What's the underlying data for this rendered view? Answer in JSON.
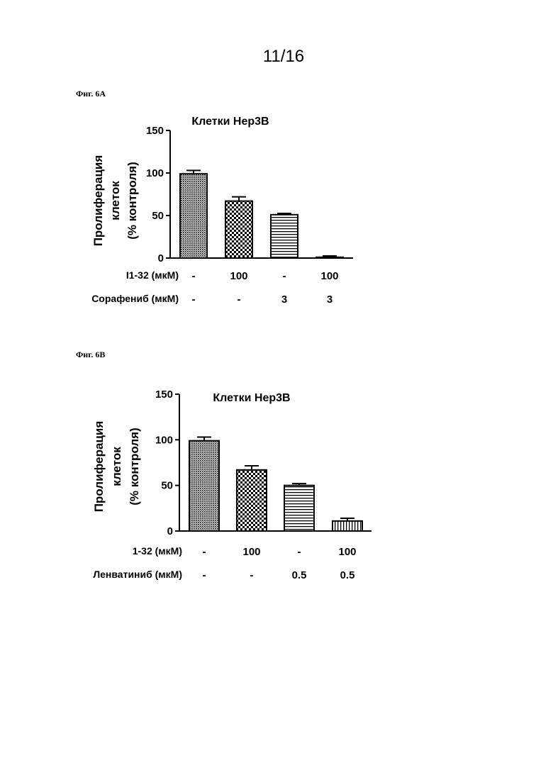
{
  "page_number": "11/16",
  "figures": [
    {
      "label": "Фиг. 6А"
    },
    {
      "label": "Фиг. 6В"
    }
  ],
  "chart_data": [
    {
      "type": "bar",
      "title": "Клетки Hep3B",
      "ylabel_lines": [
        "Пролиферация",
        "клеток",
        "(% контроля)"
      ],
      "ylim": [
        0,
        150
      ],
      "yticks": [
        0,
        50,
        100,
        150
      ],
      "values": [
        99,
        67,
        51,
        1
      ],
      "errors": [
        4,
        5,
        1.5,
        1.5
      ],
      "patterns": [
        "dots-dense",
        "checker",
        "horizontal-lines",
        "vertical-lines"
      ],
      "conditions": [
        {
          "label": "I1-32 (мкМ)",
          "values": [
            "-",
            "100",
            "-",
            "100"
          ]
        },
        {
          "label": "Сорафениб (мкМ)",
          "values": [
            "-",
            "-",
            "3",
            "3"
          ]
        }
      ]
    },
    {
      "type": "bar",
      "title": "Клетки Hep3B",
      "ylabel_lines": [
        "Пролиферация",
        "клеток",
        "(% контроля)"
      ],
      "ylim": [
        0,
        150
      ],
      "yticks": [
        0,
        50,
        100,
        150
      ],
      "values": [
        99,
        67,
        50,
        11
      ],
      "errors": [
        4,
        4.5,
        2,
        3
      ],
      "patterns": [
        "dots-dense",
        "checker",
        "horizontal-lines",
        "vertical-lines"
      ],
      "conditions": [
        {
          "label": "1-32 (мкМ)",
          "values": [
            "-",
            "100",
            "-",
            "100"
          ]
        },
        {
          "label": "Ленватиниб (мкМ)",
          "values": [
            "-",
            "-",
            "0.5",
            "0.5"
          ]
        }
      ]
    }
  ]
}
